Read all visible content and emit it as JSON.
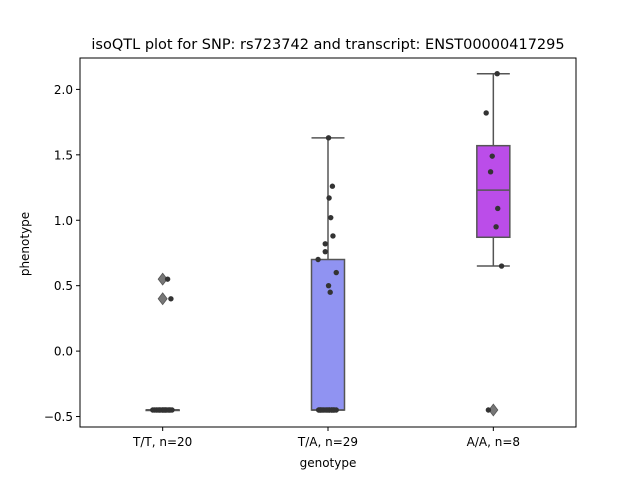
{
  "chart_data": {
    "type": "box",
    "title": "isoQTL plot for SNP: rs723742 and transcript: ENST00000417295",
    "xlabel": "genotype",
    "ylabel": "phenotype",
    "ylim": [
      -0.58,
      2.24
    ],
    "yticks": [
      -0.5,
      0.0,
      0.5,
      1.0,
      1.5,
      2.0
    ],
    "ytick_labels": [
      "−0.5",
      "0.0",
      "0.5",
      "1.0",
      "1.5",
      "2.0"
    ],
    "grid": false,
    "categories": [
      "T/T, n=20",
      "T/A, n=29",
      "A/A, n=8"
    ],
    "colors": [
      "#c8c6c3",
      "#9093f2",
      "#bb4de9"
    ],
    "box_edge_color": "#555555",
    "point_color": "#333333",
    "boxes": [
      {
        "q1": -0.45,
        "median": -0.45,
        "q3": -0.45,
        "whisker_low": -0.45,
        "whisker_high": -0.45,
        "fliers": [
          0.55,
          0.4
        ]
      },
      {
        "q1": -0.45,
        "median": -0.45,
        "q3": 0.7,
        "whisker_low": -0.45,
        "whisker_high": 1.63,
        "fliers": []
      },
      {
        "q1": 0.87,
        "median": 1.23,
        "q3": 1.57,
        "whisker_low": 0.65,
        "whisker_high": 2.12,
        "fliers": [
          -0.45
        ]
      }
    ],
    "points": [
      [
        {
          "j": -0.18,
          "y": -0.45
        },
        {
          "j": -0.15,
          "y": -0.45
        },
        {
          "j": -0.12,
          "y": -0.45
        },
        {
          "j": -0.07,
          "y": -0.45
        },
        {
          "j": -0.04,
          "y": -0.45
        },
        {
          "j": -0.01,
          "y": -0.45
        },
        {
          "j": 0.02,
          "y": -0.45
        },
        {
          "j": 0.05,
          "y": -0.45
        },
        {
          "j": 0.08,
          "y": -0.45
        },
        {
          "j": 0.11,
          "y": -0.45
        },
        {
          "j": 0.14,
          "y": -0.45
        },
        {
          "j": 0.17,
          "y": -0.45
        },
        {
          "j": -0.1,
          "y": -0.45
        },
        {
          "j": 0.0,
          "y": -0.45
        },
        {
          "j": 0.06,
          "y": -0.45
        },
        {
          "j": 0.12,
          "y": -0.45
        },
        {
          "j": -0.06,
          "y": -0.45
        },
        {
          "j": 0.09,
          "y": 0.55
        },
        {
          "j": 0.15,
          "y": 0.4
        },
        {
          "j": 0.03,
          "y": -0.45
        }
      ],
      [
        {
          "j": -0.17,
          "y": -0.45
        },
        {
          "j": -0.14,
          "y": -0.45
        },
        {
          "j": -0.11,
          "y": -0.45
        },
        {
          "j": -0.07,
          "y": -0.45
        },
        {
          "j": -0.04,
          "y": -0.45
        },
        {
          "j": 0.0,
          "y": -0.45
        },
        {
          "j": 0.03,
          "y": -0.45
        },
        {
          "j": 0.06,
          "y": -0.45
        },
        {
          "j": 0.09,
          "y": -0.45
        },
        {
          "j": 0.12,
          "y": -0.45
        },
        {
          "j": 0.15,
          "y": -0.45
        },
        {
          "j": 0.02,
          "y": -0.45
        },
        {
          "j": -0.09,
          "y": -0.45
        },
        {
          "j": 0.1,
          "y": -0.45
        },
        {
          "j": -0.02,
          "y": -0.45
        },
        {
          "j": -0.18,
          "y": 0.7
        },
        {
          "j": -0.05,
          "y": 0.76
        },
        {
          "j": -0.05,
          "y": 0.82
        },
        {
          "j": 0.09,
          "y": 0.88
        },
        {
          "j": 0.05,
          "y": 1.02
        },
        {
          "j": 0.02,
          "y": 1.17
        },
        {
          "j": 0.08,
          "y": 1.26
        },
        {
          "j": 0.01,
          "y": 1.63
        },
        {
          "j": 0.15,
          "y": 0.6
        },
        {
          "j": 0.01,
          "y": 0.5
        },
        {
          "j": 0.04,
          "y": 0.45
        },
        {
          "j": -0.16,
          "y": -0.45
        },
        {
          "j": 0.07,
          "y": -0.45
        },
        {
          "j": -0.13,
          "y": -0.45
        }
      ],
      [
        {
          "j": 0.07,
          "y": 2.12
        },
        {
          "j": -0.13,
          "y": 1.82
        },
        {
          "j": -0.02,
          "y": 1.49
        },
        {
          "j": -0.05,
          "y": 1.37
        },
        {
          "j": 0.08,
          "y": 1.09
        },
        {
          "j": 0.05,
          "y": 0.95
        },
        {
          "j": 0.15,
          "y": 0.65
        },
        {
          "j": -0.09,
          "y": -0.45
        }
      ]
    ]
  }
}
